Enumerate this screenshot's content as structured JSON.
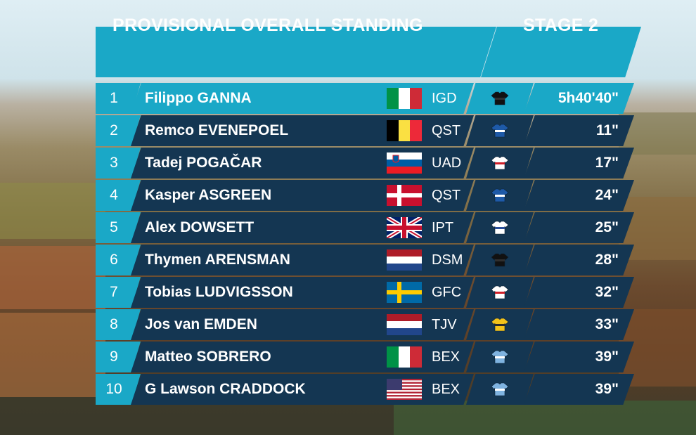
{
  "header": {
    "title": "PROVISIONAL OVERALL STANDING",
    "stage": "STAGE 2"
  },
  "colors": {
    "accent": "#1aa8c7",
    "row_dark": "#143652",
    "text": "#ffffff"
  },
  "standings": [
    {
      "pos": "1",
      "name": "Filippo GANNA",
      "flag": "italy",
      "team": "IGD",
      "jersey": "black-jersey-icon",
      "time": "5h40'40\""
    },
    {
      "pos": "2",
      "name": "Remco EVENEPOEL",
      "flag": "belgium",
      "team": "QST",
      "jersey": "blue-jersey-icon",
      "time": "11\""
    },
    {
      "pos": "3",
      "name": "Tadej POGAČAR",
      "flag": "slovenia",
      "team": "UAD",
      "jersey": "white-red-jersey-icon",
      "time": "17\""
    },
    {
      "pos": "4",
      "name": "Kasper ASGREEN",
      "flag": "denmark",
      "team": "QST",
      "jersey": "blue-jersey-icon",
      "time": "24\""
    },
    {
      "pos": "5",
      "name": "Alex DOWSETT",
      "flag": "uk",
      "team": "IPT",
      "jersey": "white-blue-jersey-icon",
      "time": "25\""
    },
    {
      "pos": "6",
      "name": "Thymen ARENSMAN",
      "flag": "netherlands",
      "team": "DSM",
      "jersey": "black-jersey-icon",
      "time": "28\""
    },
    {
      "pos": "7",
      "name": "Tobias LUDVIGSSON",
      "flag": "sweden",
      "team": "GFC",
      "jersey": "white-red-jersey-icon",
      "time": "32\""
    },
    {
      "pos": "8",
      "name": "Jos van EMDEN",
      "flag": "netherlands",
      "team": "TJV",
      "jersey": "yellow-jersey-icon",
      "time": "33\""
    },
    {
      "pos": "9",
      "name": "Matteo SOBRERO",
      "flag": "italy",
      "team": "BEX",
      "jersey": "light-blue-jersey-icon",
      "time": "39\""
    },
    {
      "pos": "10",
      "name": "G Lawson CRADDOCK",
      "flag": "usa",
      "team": "BEX",
      "jersey": "light-blue-jersey-icon",
      "time": "39\""
    }
  ]
}
